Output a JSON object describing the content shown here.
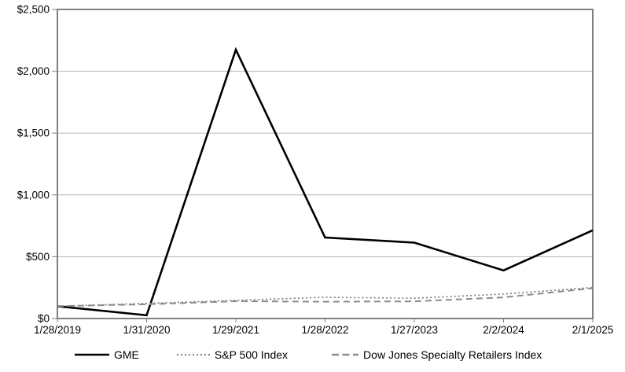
{
  "chart_data": {
    "type": "line",
    "title": "",
    "xlabel": "",
    "ylabel": "",
    "x": [
      "1/28/2019",
      "1/31/2020",
      "1/29/2021",
      "1/28/2022",
      "1/27/2023",
      "2/2/2024",
      "2/1/2025"
    ],
    "series": [
      {
        "name": "GME",
        "values": [
          100,
          26,
          2174,
          655,
          614,
          389,
          714
        ],
        "color": "#000000",
        "style": "solid"
      },
      {
        "name": "S&P 500 Index",
        "values": [
          100,
          122,
          147,
          172,
          164,
          198,
          251
        ],
        "color": "#7f7f7f",
        "style": "dotted"
      },
      {
        "name": "Dow Jones Specialty Retailers Index",
        "values": [
          100,
          115,
          140,
          136,
          139,
          171,
          245
        ],
        "color": "#8c8c8c",
        "style": "dashed"
      }
    ],
    "ylim": [
      0,
      2500
    ],
    "ytick_step": 500,
    "ytick_labels": [
      "$0",
      "$500",
      "$1,000",
      "$1,500",
      "$2,000",
      "$2,500"
    ],
    "grid": true,
    "legend_position": "bottom"
  },
  "colors": {
    "background": "#ffffff",
    "plot_border": "#808080",
    "gridline": "#b3b3b3",
    "tick": "#808080",
    "text": "#000000"
  }
}
